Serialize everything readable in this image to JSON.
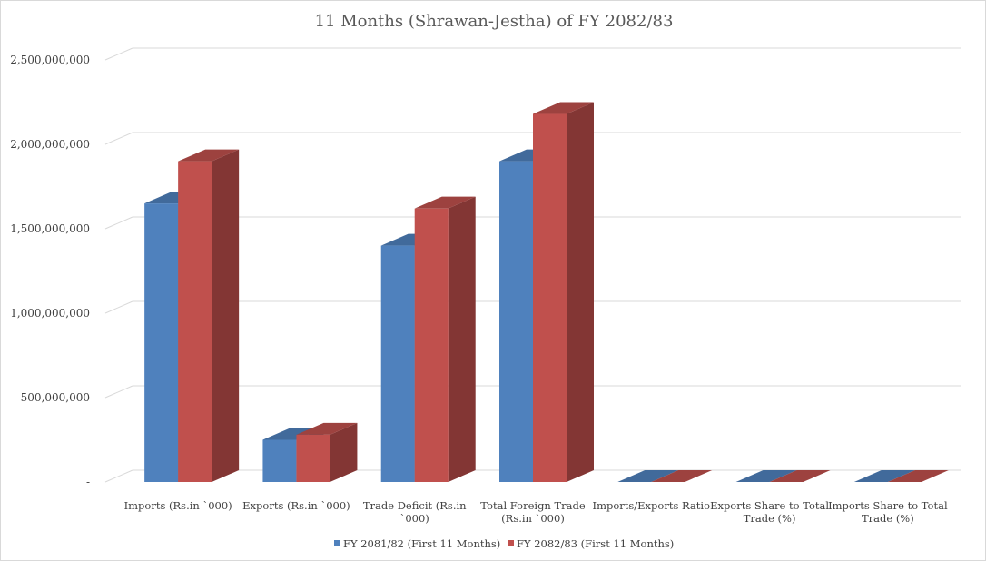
{
  "chart_data": {
    "type": "bar",
    "title": "11 Months (Shrawan-Jestha) of FY 2082/83",
    "xlabel": "",
    "ylabel": "",
    "ylim": [
      0,
      2500000000
    ],
    "yticks": [
      "-",
      "500,000,000",
      "1,000,000,000",
      "1,500,000,000",
      "2,000,000,000",
      "2,500,000,000"
    ],
    "grid": true,
    "legend_position": "bottom",
    "categories": [
      [
        "Imports (Rs.in `000)"
      ],
      [
        "Exports (Rs.in `000)"
      ],
      [
        "Trade Deficit (Rs.in",
        "`000)"
      ],
      [
        "Total  Foreign Trade",
        "(Rs.in `000)"
      ],
      [
        "Imports/Exports Ratio"
      ],
      [
        "Exports Share to Total",
        "Trade (%)"
      ],
      [
        "Imports Share to Total",
        "Trade (%)"
      ]
    ],
    "series": [
      {
        "name": "FY 2081/82 (First 11 Months)",
        "color": "#4f81bd",
        "values": [
          1650000000,
          250000000,
          1400000000,
          1900000000,
          6.6,
          13.2,
          86.8
        ]
      },
      {
        "name": "FY 2082/83 (First 11 Months)",
        "color": "#c0504d",
        "values": [
          1900000000,
          280000000,
          1620000000,
          2180000000,
          6.8,
          12.8,
          87.2
        ]
      }
    ]
  }
}
